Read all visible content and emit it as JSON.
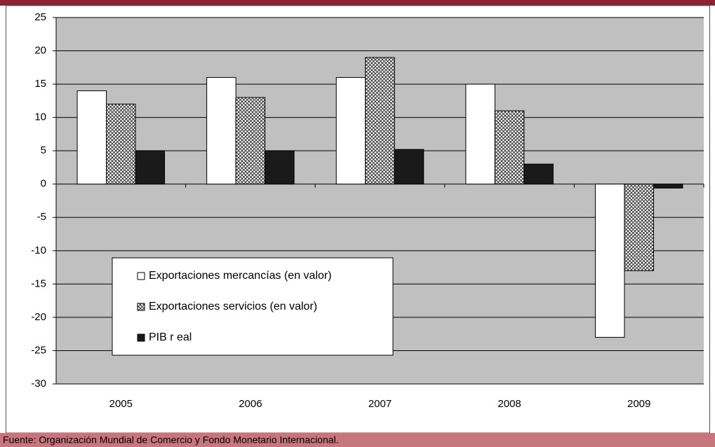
{
  "chart_data": {
    "type": "bar",
    "categories": [
      "2005",
      "2006",
      "2007",
      "2008",
      "2009"
    ],
    "series": [
      {
        "name": "Exportaciones mercancías (en valor)",
        "color": "#ffffff",
        "values": [
          14,
          16,
          16,
          15,
          -23
        ]
      },
      {
        "name": "Exportaciones servicios (en valor)",
        "color": "#ffffff",
        "pattern": "crosshatch",
        "values": [
          12,
          13,
          19,
          11,
          -13
        ]
      },
      {
        "name": "PIB r eal",
        "color": "#1a1a1a",
        "values": [
          5,
          5,
          5.2,
          3,
          -0.6
        ]
      }
    ],
    "ylim": [
      -30,
      25
    ],
    "yticks": [
      -30,
      -25,
      -20,
      -15,
      -10,
      -5,
      0,
      5,
      10,
      15,
      20,
      25
    ],
    "grid": true,
    "legend": "bottom-left",
    "source": "Fuente: Organización Mundial de Comercio y Fondo Monetario Internacional."
  }
}
